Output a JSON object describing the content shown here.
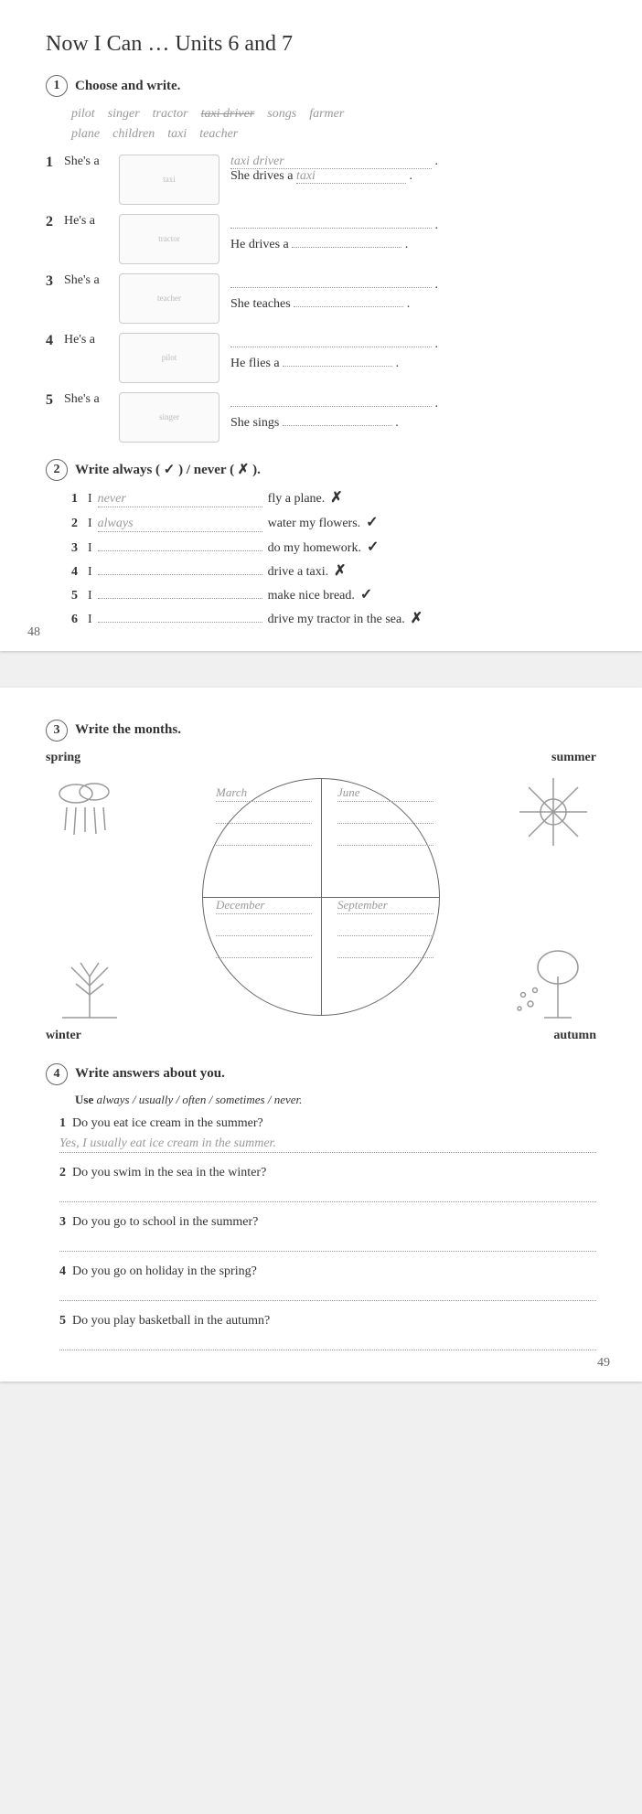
{
  "page1": {
    "title": "Now I Can …  Units 6 and 7",
    "pageNum": "48",
    "ex1": {
      "num": "1",
      "heading": "Choose and write.",
      "wordbank": [
        "pilot",
        "singer",
        "tractor",
        "taxi driver",
        "songs",
        "farmer",
        "plane",
        "children",
        "taxi",
        "teacher"
      ],
      "struckWord": "taxi driver",
      "rows": [
        {
          "n": "1",
          "stem": "She's a",
          "ans1": "taxi driver",
          "line2": "She drives a",
          "ans2": "taxi",
          "img": "taxi"
        },
        {
          "n": "2",
          "stem": "He's a",
          "ans1": "",
          "line2": "He drives a",
          "ans2": "",
          "img": "tractor"
        },
        {
          "n": "3",
          "stem": "She's a",
          "ans1": "",
          "line2": "She teaches",
          "ans2": "",
          "img": "teacher"
        },
        {
          "n": "4",
          "stem": "He's a",
          "ans1": "",
          "line2": "He flies a",
          "ans2": "",
          "img": "pilot"
        },
        {
          "n": "5",
          "stem": "She's a",
          "ans1": "",
          "line2": "She sings",
          "ans2": "",
          "img": "singer"
        }
      ]
    },
    "ex2": {
      "num": "2",
      "heading": "Write always ( ✓ ) / never ( ✗ ).",
      "rows": [
        {
          "n": "1",
          "stem": "I",
          "ans": "never",
          "rest": "fly a plane.",
          "mark": "✗"
        },
        {
          "n": "2",
          "stem": "I",
          "ans": "always",
          "rest": "water my flowers.",
          "mark": "✓"
        },
        {
          "n": "3",
          "stem": "I",
          "ans": "",
          "rest": "do my homework.",
          "mark": "✓"
        },
        {
          "n": "4",
          "stem": "I",
          "ans": "",
          "rest": "drive a taxi.",
          "mark": "✗"
        },
        {
          "n": "5",
          "stem": "I",
          "ans": "",
          "rest": "make nice bread.",
          "mark": "✓"
        },
        {
          "n": "6",
          "stem": "I",
          "ans": "",
          "rest": "drive my tractor in the sea.",
          "mark": "✗"
        }
      ]
    }
  },
  "page2": {
    "pageNum": "49",
    "ex3": {
      "num": "3",
      "heading": "Write the months.",
      "labels": {
        "spring": "spring",
        "summer": "summer",
        "winter": "winter",
        "autumn": "autumn"
      },
      "quads": {
        "tl": {
          "first": "March"
        },
        "tr": {
          "first": "June"
        },
        "bl": {
          "first": "December"
        },
        "br": {
          "first": "September"
        }
      }
    },
    "ex4": {
      "num": "4",
      "heading": "Write answers about you.",
      "sub": "Use always / usually / often / sometimes / never.",
      "rows": [
        {
          "n": "1",
          "q": "Do you eat ice cream in the summer?",
          "a": "Yes, I usually eat ice cream in the summer."
        },
        {
          "n": "2",
          "q": "Do you swim in the sea in the winter?",
          "a": ""
        },
        {
          "n": "3",
          "q": "Do you go to school in the summer?",
          "a": ""
        },
        {
          "n": "4",
          "q": "Do you go on holiday in the spring?",
          "a": ""
        },
        {
          "n": "5",
          "q": "Do you play basketball in the autumn?",
          "a": ""
        }
      ]
    }
  },
  "colors": {
    "text": "#333333",
    "muted": "#999999",
    "dots": "#999999",
    "bg": "#ffffff"
  }
}
